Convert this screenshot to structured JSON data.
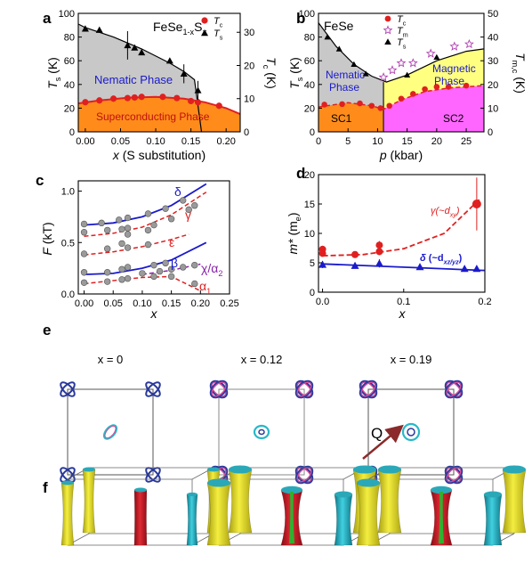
{
  "colors": {
    "nematic": "#c8c8c8",
    "superconducting": "#ff8c1a",
    "magnetic": "#ffff80",
    "sc2": "#ff66ff",
    "red": "#e02020",
    "blue": "#1a1acc",
    "purple": "#8822aa",
    "fs_blue": "#2a3a9c",
    "fs_pink": "#d84a9a",
    "fs_cyan": "#28b8c8",
    "fs_yellow": "#e8e020",
    "fs_red": "#d01828",
    "fs_green": "#30b030",
    "arrow": "#8b2a2a"
  },
  "chart_data": [
    {
      "panel": "a",
      "type": "area",
      "title_parts": [
        "FeSe",
        "1-x",
        "S",
        "x"
      ],
      "xlabel_main": "x",
      "xlabel_rest": " (S substitution)",
      "ylabel_left": [
        "T",
        "s",
        " (K)"
      ],
      "ylabel_right": [
        "T",
        "c",
        " (K)"
      ],
      "xlim": [
        -0.01,
        0.22
      ],
      "ylim_left": [
        0,
        100
      ],
      "ylim_right": [
        0,
        35.7
      ],
      "xticks": [
        "0.00",
        "0.05",
        "0.10",
        "0.15",
        "0.20"
      ],
      "xtick_values": [
        0,
        0.05,
        0.1,
        0.15,
        0.2
      ],
      "yticks_left": [
        "0",
        "20",
        "40",
        "60",
        "80",
        "100"
      ],
      "ytick_left_values": [
        0,
        20,
        40,
        60,
        80,
        100
      ],
      "yticks_right": [
        "0",
        "10",
        "20",
        "30"
      ],
      "ytick_right_values": [
        0,
        10,
        20,
        30
      ],
      "legend": [
        {
          "label": [
            "T",
            "c"
          ],
          "marker": "circle"
        },
        {
          "label": [
            "T",
            "s"
          ],
          "marker": "triangle"
        }
      ],
      "region_labels": [
        "Nematic Phase",
        "Superconducting Phase"
      ],
      "Ts_points": [
        [
          0,
          87
        ],
        [
          0.02,
          86
        ],
        [
          0.06,
          73
        ],
        [
          0.07,
          71
        ],
        [
          0.08,
          67
        ],
        [
          0.12,
          60
        ],
        [
          0.14,
          49
        ],
        [
          0.16,
          35
        ]
      ],
      "Tc_points": [
        [
          0,
          25
        ],
        [
          0.02,
          26.5
        ],
        [
          0.04,
          28
        ],
        [
          0.06,
          28.5
        ],
        [
          0.07,
          29
        ],
        [
          0.08,
          29.5
        ],
        [
          0.11,
          29.5
        ],
        [
          0.13,
          28.5
        ],
        [
          0.15,
          26
        ],
        [
          0.16,
          25
        ],
        [
          0.19,
          22
        ]
      ],
      "Ts_line": [
        [
          -0.01,
          91
        ],
        [
          0,
          88
        ],
        [
          0.04,
          80
        ],
        [
          0.08,
          70
        ],
        [
          0.12,
          58
        ],
        [
          0.14,
          51
        ],
        [
          0.155,
          44
        ],
        [
          0.165,
          0
        ]
      ],
      "Tc_line": [
        [
          -0.01,
          24
        ],
        [
          0.02,
          26.5
        ],
        [
          0.06,
          28.8
        ],
        [
          0.1,
          29.5
        ],
        [
          0.14,
          28
        ],
        [
          0.17,
          25
        ],
        [
          0.2,
          20
        ],
        [
          0.22,
          15
        ]
      ]
    },
    {
      "panel": "b",
      "type": "area",
      "title": "FeSe",
      "xlabel_main": "p",
      "xlabel_rest": " (kbar)",
      "ylabel_left": [
        "T",
        "s",
        " (K)"
      ],
      "ylabel_right": [
        "T",
        "m,c",
        " (K)"
      ],
      "xlim": [
        0,
        28
      ],
      "ylim_left": [
        0,
        100
      ],
      "ylim_right": [
        0,
        50
      ],
      "xticks": [
        "0",
        "5",
        "10",
        "15",
        "20",
        "25"
      ],
      "xtick_values": [
        0,
        5,
        10,
        15,
        20,
        25
      ],
      "yticks_left": [
        "0",
        "20",
        "40",
        "60",
        "80",
        "100"
      ],
      "ytick_left_values": [
        0,
        20,
        40,
        60,
        80,
        100
      ],
      "yticks_right": [
        "0",
        "10",
        "20",
        "30",
        "40",
        "50"
      ],
      "ytick_right_values": [
        0,
        10,
        20,
        30,
        40,
        50
      ],
      "legend": [
        {
          "label": [
            "T",
            "c"
          ],
          "marker": "circle"
        },
        {
          "label": [
            "T",
            "m"
          ],
          "marker": "star"
        },
        {
          "label": [
            "T",
            "s"
          ],
          "marker": "triangle"
        }
      ],
      "region_labels": [
        "Nematic Phase",
        "Magnetic Phase",
        "SC1",
        "SC2"
      ],
      "Ts_points": [
        [
          1.5,
          80
        ],
        [
          3.5,
          70
        ],
        [
          6,
          57
        ],
        [
          8,
          49
        ],
        [
          15,
          48
        ],
        [
          20,
          63
        ]
      ],
      "Tm_points": [
        [
          11,
          23
        ],
        [
          12.5,
          26
        ],
        [
          14,
          29
        ],
        [
          16,
          29
        ],
        [
          19,
          33
        ],
        [
          23,
          36
        ],
        [
          25.5,
          37
        ]
      ],
      "Tc_points": [
        [
          1,
          11.5
        ],
        [
          4,
          11.7
        ],
        [
          7,
          12
        ],
        [
          9,
          11
        ],
        [
          10.5,
          10
        ],
        [
          12,
          11
        ],
        [
          14,
          14
        ],
        [
          16,
          16
        ],
        [
          18,
          18
        ],
        [
          20,
          19
        ],
        [
          22,
          19
        ],
        [
          25,
          19.5
        ]
      ],
      "Ts_line": [
        [
          0,
          92
        ],
        [
          3,
          72
        ],
        [
          6,
          57
        ],
        [
          9,
          47
        ],
        [
          11.5,
          42
        ],
        [
          15,
          48
        ],
        [
          20,
          60
        ],
        [
          25,
          68
        ],
        [
          28,
          70
        ]
      ],
      "Tc_line": [
        [
          0,
          10.5
        ],
        [
          5,
          12.3
        ],
        [
          9,
          11
        ],
        [
          11,
          9.5
        ],
        [
          14,
          13.5
        ],
        [
          18,
          17
        ],
        [
          22,
          18.5
        ],
        [
          28,
          19.5
        ]
      ],
      "sc_boundary_x": 11
    },
    {
      "panel": "c",
      "type": "scatter",
      "xlabel": "x",
      "ylabel": "F (kT)",
      "xlim": [
        -0.01,
        0.25
      ],
      "ylim": [
        0,
        1.1
      ],
      "xticks": [
        "0.00",
        "0.05",
        "0.10",
        "0.15",
        "0.20",
        "0.25"
      ],
      "xtick_values": [
        0,
        0.05,
        0.1,
        0.15,
        0.2,
        0.25
      ],
      "yticks": [
        "0.0",
        "0.5",
        "1.0"
      ],
      "ytick_values": [
        0,
        0.5,
        1.0
      ],
      "orbit_labels": [
        "δ",
        "γ",
        "ε",
        "β",
        "χ/α",
        "2",
        "α",
        "1"
      ],
      "series": [
        {
          "name": "δ",
          "line": "solid",
          "fit": [
            [
              0,
              0.67
            ],
            [
              0.05,
              0.69
            ],
            [
              0.1,
              0.75
            ],
            [
              0.15,
              0.86
            ],
            [
              0.21,
              1.07
            ]
          ],
          "points": [
            [
              0,
              0.68
            ],
            [
              0.03,
              0.69
            ],
            [
              0.06,
              0.72
            ],
            [
              0.075,
              0.74
            ],
            [
              0.11,
              0.78
            ],
            [
              0.14,
              0.83
            ],
            [
              0.17,
              0.91
            ]
          ]
        },
        {
          "name": "γ",
          "line": "dashed",
          "fit": [
            [
              0,
              0.56
            ],
            [
              0.05,
              0.59
            ],
            [
              0.1,
              0.65
            ],
            [
              0.15,
              0.77
            ],
            [
              0.21,
              0.99
            ]
          ],
          "points": [
            [
              0,
              0.6
            ],
            [
              0.04,
              0.62
            ],
            [
              0.065,
              0.63
            ],
            [
              0.075,
              0.64
            ],
            [
              0.12,
              0.67
            ],
            [
              0.15,
              0.73
            ],
            [
              0.18,
              0.82
            ],
            [
              0.19,
              0.86
            ],
            [
              0.075,
              0.58
            ],
            [
              0.11,
              0.62
            ]
          ]
        },
        {
          "name": "ε",
          "line": "dashed",
          "fit": [
            [
              0,
              0.38
            ],
            [
              0.05,
              0.41
            ],
            [
              0.1,
              0.46
            ],
            [
              0.15,
              0.53
            ],
            [
              0.18,
              0.58
            ]
          ],
          "points": [
            [
              0,
              0.39
            ],
            [
              0.04,
              0.44
            ],
            [
              0.065,
              0.49
            ],
            [
              0.075,
              0.45
            ],
            [
              0.11,
              0.48
            ]
          ]
        },
        {
          "name": "β",
          "line": "solid",
          "fit": [
            [
              0,
              0.19
            ],
            [
              0.05,
              0.2
            ],
            [
              0.1,
              0.25
            ],
            [
              0.15,
              0.33
            ],
            [
              0.21,
              0.5
            ]
          ],
          "points": [
            [
              0,
              0.21
            ],
            [
              0.04,
              0.21
            ],
            [
              0.065,
              0.24
            ],
            [
              0.075,
              0.26
            ],
            [
              0.12,
              0.28
            ],
            [
              0.14,
              0.3
            ]
          ]
        },
        {
          "name": "χ/α2",
          "line": "dashed",
          "fit": [
            [
              0.1,
              0.19
            ],
            [
              0.15,
              0.23
            ],
            [
              0.2,
              0.29
            ]
          ],
          "points": [
            [
              0.1,
              0.2
            ],
            [
              0.13,
              0.22
            ],
            [
              0.15,
              0.24
            ],
            [
              0.17,
              0.26
            ],
            [
              0.19,
              0.28
            ]
          ]
        },
        {
          "name": "α1",
          "line": "dashed",
          "fit": [
            [
              0,
              0.1
            ],
            [
              0.05,
              0.13
            ],
            [
              0.1,
              0.16
            ],
            [
              0.15,
              0.17
            ],
            [
              0.2,
              0.03
            ]
          ],
          "points": [
            [
              0,
              0.11
            ],
            [
              0.04,
              0.12
            ],
            [
              0.065,
              0.14
            ],
            [
              0.075,
              0.15
            ],
            [
              0.12,
              0.17
            ],
            [
              0.15,
              0.17
            ],
            [
              0.19,
              0.1
            ]
          ]
        }
      ]
    },
    {
      "panel": "d",
      "type": "scatter",
      "xlabel": "x",
      "ylabel_parts": [
        "m*",
        " (m",
        "e",
        ")"
      ],
      "xlim": [
        -0.005,
        0.2
      ],
      "ylim": [
        0,
        20
      ],
      "xticks": [
        "0.0",
        "0.1",
        "0.2"
      ],
      "xtick_values": [
        0,
        0.1,
        0.2
      ],
      "yticks": [
        "0",
        "5",
        "10",
        "15",
        "20"
      ],
      "ytick_values": [
        0,
        5,
        10,
        15,
        20
      ],
      "series": [
        {
          "name": "γ",
          "label_parts": [
            "γ",
            "(~d",
            "xy",
            ")"
          ],
          "color": "red",
          "marker": "circle",
          "line": "dashed",
          "points": [
            [
              0,
              7.3
            ],
            [
              0,
              6.6
            ],
            [
              0.04,
              6.4
            ],
            [
              0.07,
              8
            ],
            [
              0.07,
              6.9
            ],
            [
              0.19,
              15
            ]
          ],
          "errors": [
            [
              0,
              0.6
            ],
            [
              0,
              0.4
            ],
            [
              0.04,
              0.4
            ],
            [
              0.07,
              0.7
            ],
            [
              0.07,
              0.5
            ],
            [
              0.19,
              4.5
            ]
          ],
          "fit": [
            [
              0,
              6.2
            ],
            [
              0.05,
              6.4
            ],
            [
              0.1,
              7.4
            ],
            [
              0.15,
              10
            ],
            [
              0.195,
              16
            ]
          ]
        },
        {
          "name": "δ",
          "label_parts": [
            "δ",
            " (~d",
            "xz/yz",
            ")"
          ],
          "color": "blue",
          "marker": "triangle",
          "line": "solid",
          "points": [
            [
              0,
              4.7
            ],
            [
              0.04,
              4.5
            ],
            [
              0.07,
              4.9
            ],
            [
              0.12,
              4.3
            ],
            [
              0.175,
              4
            ],
            [
              0.19,
              4
            ]
          ],
          "errors": [
            [
              0,
              0.6
            ],
            [
              0.04,
              0.5
            ],
            [
              0.07,
              0.7
            ],
            [
              0.12,
              0.4
            ],
            [
              0.175,
              0.4
            ],
            [
              0.19,
              0.5
            ]
          ],
          "fit": [
            [
              0,
              4.8
            ],
            [
              0.2,
              3.7
            ]
          ]
        }
      ]
    }
  ],
  "panel_labels": [
    "a",
    "b",
    "c",
    "d",
    "e",
    "f"
  ],
  "panel_e": {
    "titles": [
      "x = 0",
      "x = 0.12",
      "x = 0.19"
    ],
    "vector_label": "Q"
  }
}
